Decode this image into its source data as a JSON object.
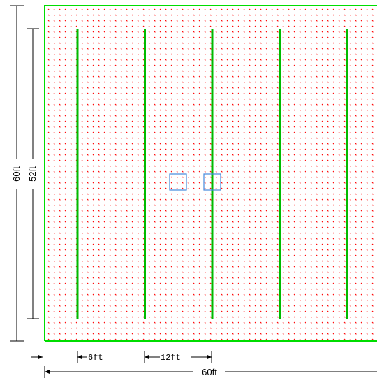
{
  "dimensions": {
    "total_width": "60ft",
    "total_height": "60ft",
    "row_length": "52ft",
    "edge_offset": "6ft",
    "row_spacing": "12ft"
  },
  "plan": {
    "row_count": 5,
    "boxes_count": 2,
    "colors": {
      "boundary": "#00dd00",
      "rows": "#00bb00",
      "grid_dots": "#ff0000",
      "boxes": "#4488dd",
      "dimension_lines": "#000000"
    }
  }
}
